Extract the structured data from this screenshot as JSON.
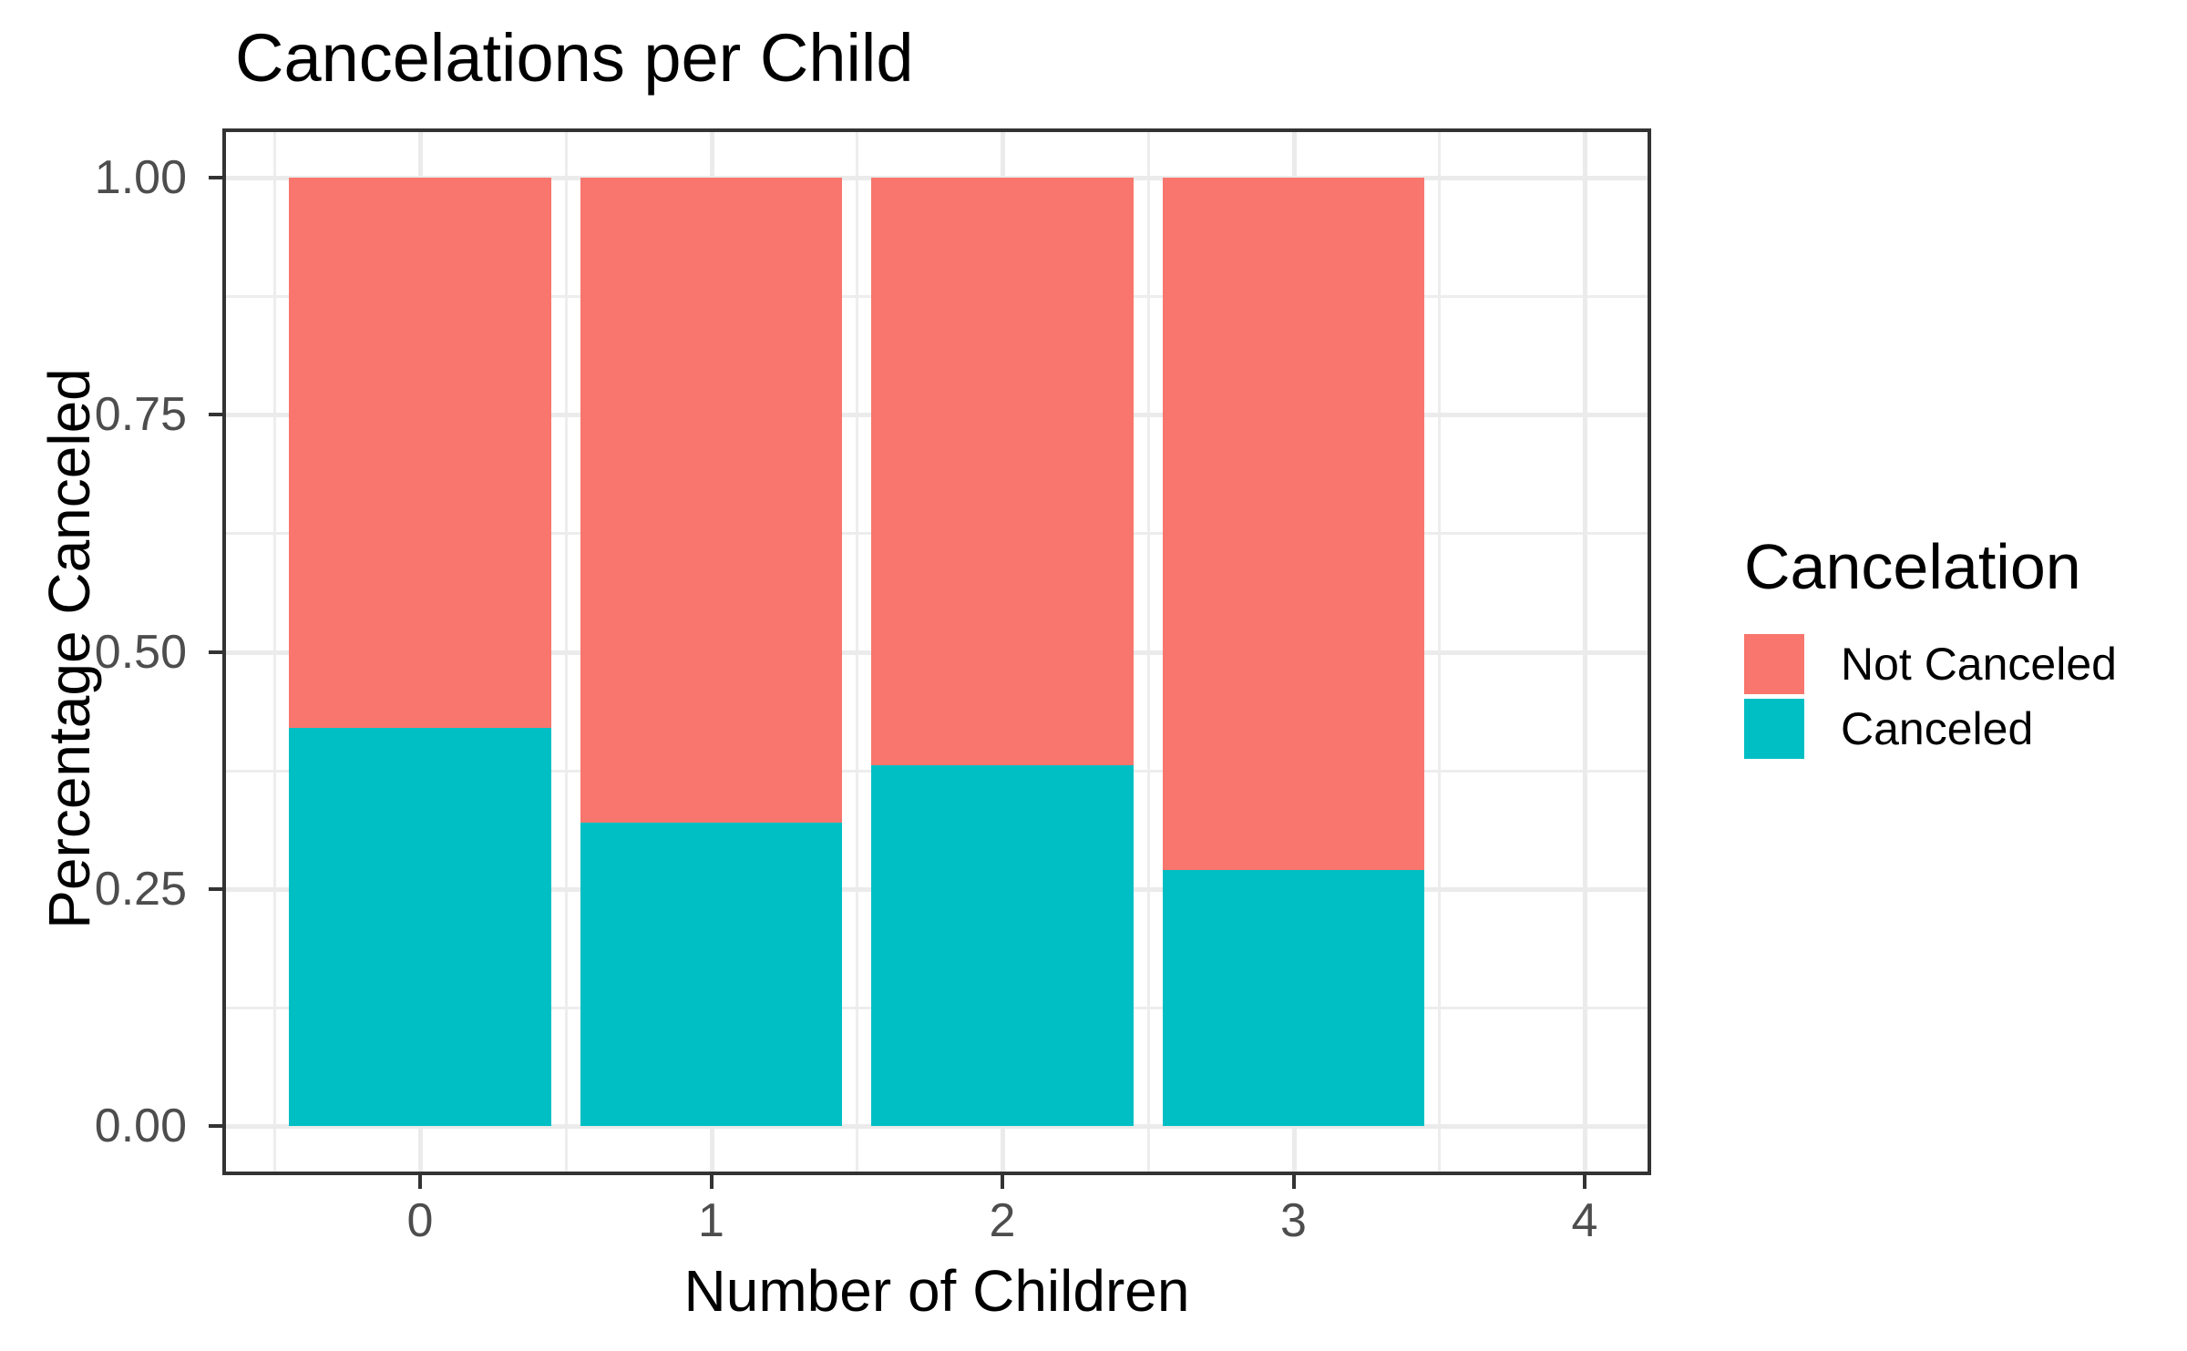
{
  "title": "Cancelations per Child",
  "axes": {
    "x_label": "Number of Children",
    "y_label": "Percentage Canceled",
    "x_ticks": [
      "0",
      "1",
      "2",
      "3",
      "4"
    ],
    "y_ticks": [
      "0.00",
      "0.25",
      "0.50",
      "0.75",
      "1.00"
    ]
  },
  "legend": {
    "title": "Cancelation",
    "items": [
      {
        "label": "Not Canceled",
        "color": "#F8766D"
      },
      {
        "label": "Canceled",
        "color": "#00BFC4"
      }
    ]
  },
  "colors": {
    "not_canceled": "#F8766D",
    "canceled": "#00BFC4",
    "gridline": "#EBEBEB",
    "panel_border": "#333333",
    "tick_text": "#4D4D4D"
  },
  "chart_data": {
    "type": "bar",
    "stacked": true,
    "title": "Cancelations per Child",
    "xlabel": "Number of Children",
    "ylabel": "Percentage Canceled",
    "categories": [
      0,
      1,
      2,
      3
    ],
    "x_axis_ticks": [
      0,
      1,
      2,
      3,
      4
    ],
    "series": [
      {
        "name": "Canceled",
        "color": "#00BFC4",
        "values": [
          0.42,
          0.32,
          0.38,
          0.27
        ]
      },
      {
        "name": "Not Canceled",
        "color": "#F8766D",
        "values": [
          0.58,
          0.68,
          0.62,
          0.73
        ]
      }
    ],
    "ylim": [
      0,
      1
    ],
    "y_major_ticks": [
      0,
      0.25,
      0.5,
      0.75,
      1.0
    ],
    "y_minor_ticks": [
      0.125,
      0.375,
      0.625,
      0.875
    ],
    "bar_width_fraction": 0.9,
    "grid": true,
    "legend_position": "right"
  }
}
